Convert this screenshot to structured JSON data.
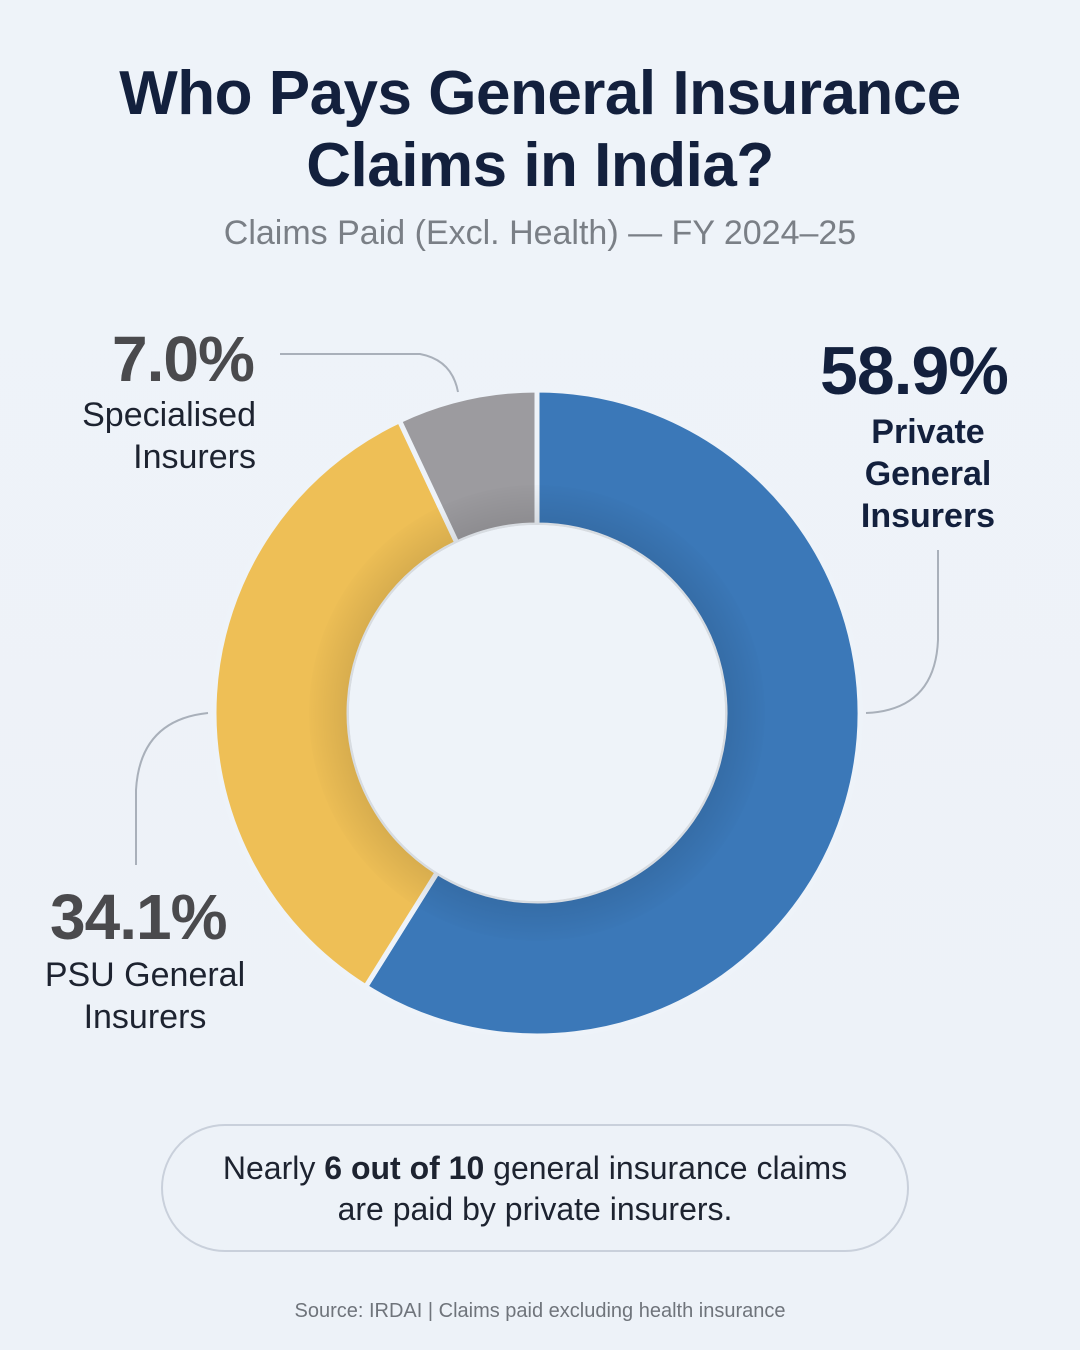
{
  "title": {
    "line1": "Who Pays General Insurance",
    "line2": "Claims in India?"
  },
  "subtitle": "Claims Paid (Excl. Health) — FY 2024–25",
  "chart_data": {
    "type": "pie",
    "donut": true,
    "title": "Who Pays General Insurance Claims in India?",
    "subtitle": "Claims Paid (Excl. Health) — FY 2024–25",
    "unit": "%",
    "slices": [
      {
        "label": "Private General Insurers",
        "value": 58.9,
        "value_label": "58.9%",
        "color": "#3b78b8",
        "label_color": "#13203d"
      },
      {
        "label": "PSU General Insurers",
        "value": 34.1,
        "value_label": "34.1%",
        "color": "#eebf56",
        "label_color": "#4a4a4d"
      },
      {
        "label": "Specialised Insurers",
        "value": 7.0,
        "value_label": "7.0%",
        "color": "#9c9b9f",
        "label_color": "#4a4a4d"
      }
    ]
  },
  "labels": {
    "private": [
      "Private",
      "General",
      "Insurers"
    ],
    "psu": [
      "PSU General",
      "Insurers"
    ],
    "specialised": [
      "Specialised",
      "Insurers"
    ]
  },
  "callout": {
    "pre": "Nearly ",
    "bold": "6 out of 10",
    "post": " general insurance claims",
    "line2": "are paid by private insurers."
  },
  "source": "Source: IRDAI | Claims paid excluding health insurance"
}
